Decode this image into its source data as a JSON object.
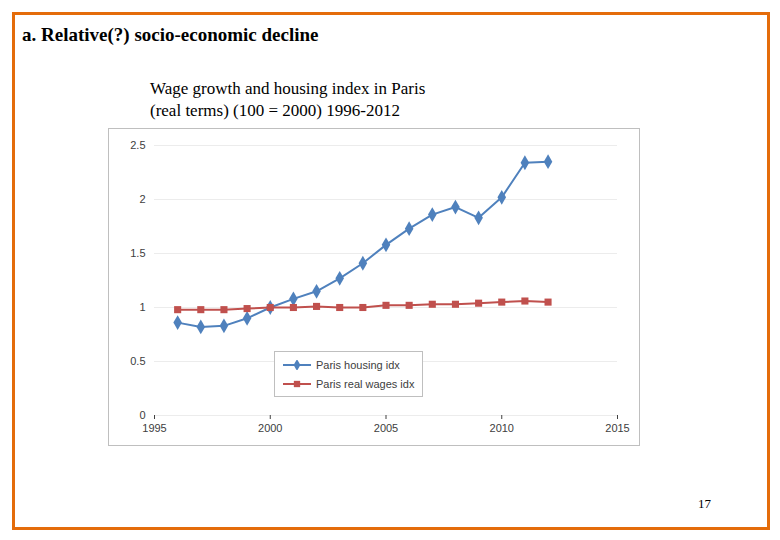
{
  "slide": {
    "heading": "a. Relative(?) socio-economic decline",
    "page_number": "17"
  },
  "chart_data": {
    "type": "line",
    "title": "Wage growth and housing index in Paris",
    "subtitle": "(real terms) (100 = 2000) 1996-2012",
    "x": [
      1996,
      1997,
      1998,
      1999,
      2000,
      2001,
      2002,
      2003,
      2004,
      2005,
      2006,
      2007,
      2008,
      2009,
      2010,
      2011,
      2012
    ],
    "series": [
      {
        "name": "Paris housing idx",
        "color": "#4f81bd",
        "marker": "diamond",
        "values": [
          0.86,
          0.82,
          0.83,
          0.9,
          1.0,
          1.08,
          1.15,
          1.27,
          1.41,
          1.58,
          1.73,
          1.86,
          1.93,
          1.83,
          2.02,
          2.34,
          2.35
        ]
      },
      {
        "name": "Paris real wages idx",
        "color": "#c0504d",
        "marker": "square",
        "values": [
          0.98,
          0.98,
          0.98,
          0.99,
          1.0,
          1.0,
          1.01,
          1.0,
          1.0,
          1.02,
          1.02,
          1.03,
          1.03,
          1.04,
          1.05,
          1.06,
          1.05
        ]
      }
    ],
    "xlim": [
      1995,
      2015
    ],
    "xticks": [
      1995,
      2000,
      2005,
      2010,
      2015
    ],
    "ylim": [
      0,
      2.5
    ],
    "yticks": [
      0,
      0.5,
      1,
      1.5,
      2,
      2.5
    ],
    "grid": true,
    "legend": "bottom"
  }
}
